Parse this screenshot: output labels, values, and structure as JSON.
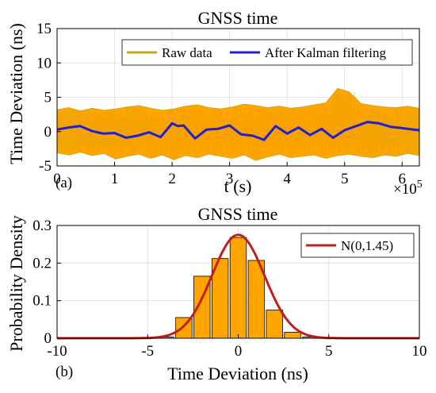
{
  "chart_data": [
    {
      "type": "line",
      "panel_label": "(a)",
      "title": "GNSS time",
      "xlabel": "t (s)",
      "ylabel": "Time Deviation (ns)",
      "x_exponent_label": "×10",
      "x_exponent_power": "5",
      "xlim": [
        0,
        630000
      ],
      "ylim": [
        -5,
        15
      ],
      "xticks": [
        0,
        1,
        2,
        3,
        4,
        5,
        6
      ],
      "yticks": [
        -5,
        0,
        5,
        10,
        15
      ],
      "grid": true,
      "legend_placement": "top",
      "series": [
        {
          "name": "Raw data",
          "color": "#c8a616",
          "fill_color": "#ffa500",
          "description_values": "noise band around 0, spanning about -4 to +4 ns",
          "envelope_upper": [
            3.2,
            3.5,
            3.0,
            3.4,
            3.1,
            3.3,
            3.6,
            3.8,
            3.4,
            3.1,
            3.3,
            3.7,
            3.9,
            3.5,
            3.3,
            3.6,
            4.0,
            3.8,
            3.5,
            3.7,
            3.4,
            3.6,
            3.9,
            4.2,
            6.3,
            5.8,
            4.1,
            3.8,
            3.6,
            3.5,
            3.7,
            3.4
          ],
          "envelope_lower": [
            -3.1,
            -3.4,
            -3.0,
            -3.5,
            -3.2,
            -4.0,
            -3.6,
            -3.3,
            -3.9,
            -3.4,
            -4.1,
            -3.5,
            -3.8,
            -3.3,
            -3.6,
            -3.9,
            -3.4,
            -4.2,
            -3.7,
            -3.3,
            -3.8,
            -3.6,
            -3.4,
            -3.9,
            -3.5,
            -3.3,
            -3.6,
            -3.8,
            -3.4,
            -3.6,
            -3.2,
            -3.5
          ]
        },
        {
          "name": "After Kalman filtering",
          "color": "#2020d0",
          "x": [
            0,
            20000,
            40000,
            60000,
            80000,
            100000,
            120000,
            140000,
            160000,
            180000,
            200000,
            210000,
            220000,
            240000,
            260000,
            280000,
            300000,
            320000,
            340000,
            360000,
            380000,
            400000,
            420000,
            440000,
            460000,
            480000,
            500000,
            520000,
            540000,
            560000,
            580000,
            600000,
            620000,
            630000
          ],
          "y": [
            0.3,
            0.6,
            0.8,
            0.1,
            -0.3,
            -0.2,
            -0.9,
            -0.6,
            -0.1,
            -0.8,
            1.2,
            0.8,
            0.9,
            -1.0,
            0.3,
            0.4,
            0.9,
            -0.4,
            -0.6,
            -1.2,
            0.8,
            -0.3,
            0.6,
            -0.5,
            0.4,
            -0.9,
            0.2,
            0.8,
            1.4,
            1.2,
            0.7,
            0.5,
            0.3,
            0.2
          ]
        }
      ]
    },
    {
      "type": "bar",
      "panel_label": "(b)",
      "title": "GNSS time",
      "xlabel": "Time Deviation (ns)",
      "ylabel": "Probability Density",
      "xlim": [
        -10,
        10
      ],
      "ylim": [
        0,
        0.3
      ],
      "xticks": [
        -10,
        -5,
        0,
        5,
        10
      ],
      "yticks": [
        0,
        0.1,
        0.2,
        0.3
      ],
      "grid": true,
      "legend_placement": "top-right",
      "bar_color": "#ffa500",
      "bars": [
        {
          "center": -4,
          "value": 0.003
        },
        {
          "center": -3,
          "value": 0.055
        },
        {
          "center": -2,
          "value": 0.165
        },
        {
          "center": -1,
          "value": 0.212
        },
        {
          "center": 0,
          "value": 0.268
        },
        {
          "center": 1,
          "value": 0.207
        },
        {
          "center": 2,
          "value": 0.075
        },
        {
          "center": 3,
          "value": 0.016
        },
        {
          "center": 4,
          "value": 0.003
        }
      ],
      "bar_width": 0.9,
      "series": [
        {
          "name": "N(0,1.45)",
          "color": "#c0201c",
          "distribution": "normal",
          "mean": 0,
          "sigma": 1.45
        }
      ]
    }
  ]
}
